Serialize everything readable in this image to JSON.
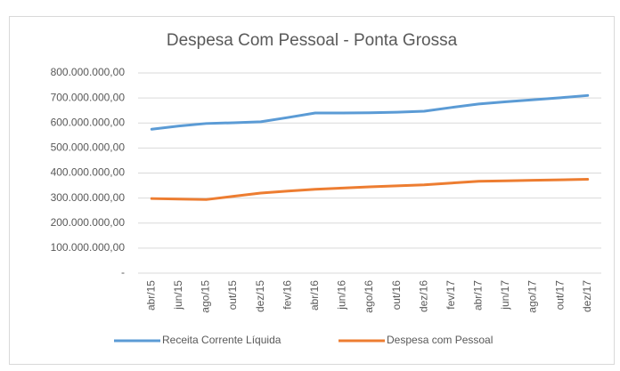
{
  "chart_data": {
    "type": "line",
    "title": "Despesa Com Pessoal - Ponta Grossa",
    "categories": [
      "abr/15",
      "jun/15",
      "ago/15",
      "out/15",
      "dez/15",
      "fev/16",
      "abr/16",
      "jun/16",
      "ago/16",
      "out/16",
      "dez/16",
      "fev/17",
      "abr/17",
      "jun/17",
      "ago/17",
      "out/17",
      "dez/17"
    ],
    "series": [
      {
        "name": "Receita Corrente Líquida",
        "color": "#5b9bd5",
        "values": [
          575000000,
          588000000,
          598000000,
          601000000,
          605000000,
          622000000,
          640000000,
          640000000,
          641000000,
          643000000,
          647000000,
          662000000,
          676000000,
          685000000,
          693000000,
          701000000,
          710000000
        ]
      },
      {
        "name": "Despesa com Pessoal",
        "color": "#ed7d31",
        "values": [
          298000000,
          296000000,
          294000000,
          307000000,
          320000000,
          328000000,
          335000000,
          340000000,
          345000000,
          349000000,
          353000000,
          360000000,
          367000000,
          369000000,
          371000000,
          373000000,
          375000000
        ]
      }
    ],
    "ylim": [
      0,
      800000000
    ],
    "yticks": [
      {
        "value": 0,
        "label": "-"
      },
      {
        "value": 100000000,
        "label": "100.000.000,00"
      },
      {
        "value": 200000000,
        "label": "200.000.000,00"
      },
      {
        "value": 300000000,
        "label": "300.000.000,00"
      },
      {
        "value": 400000000,
        "label": "400.000.000,00"
      },
      {
        "value": 500000000,
        "label": "500.000.000,00"
      },
      {
        "value": 600000000,
        "label": "600.000.000,00"
      },
      {
        "value": 700000000,
        "label": "700.000.000,00"
      },
      {
        "value": 800000000,
        "label": "800.000.000,00"
      }
    ],
    "grid": true,
    "legend": "bottom"
  }
}
